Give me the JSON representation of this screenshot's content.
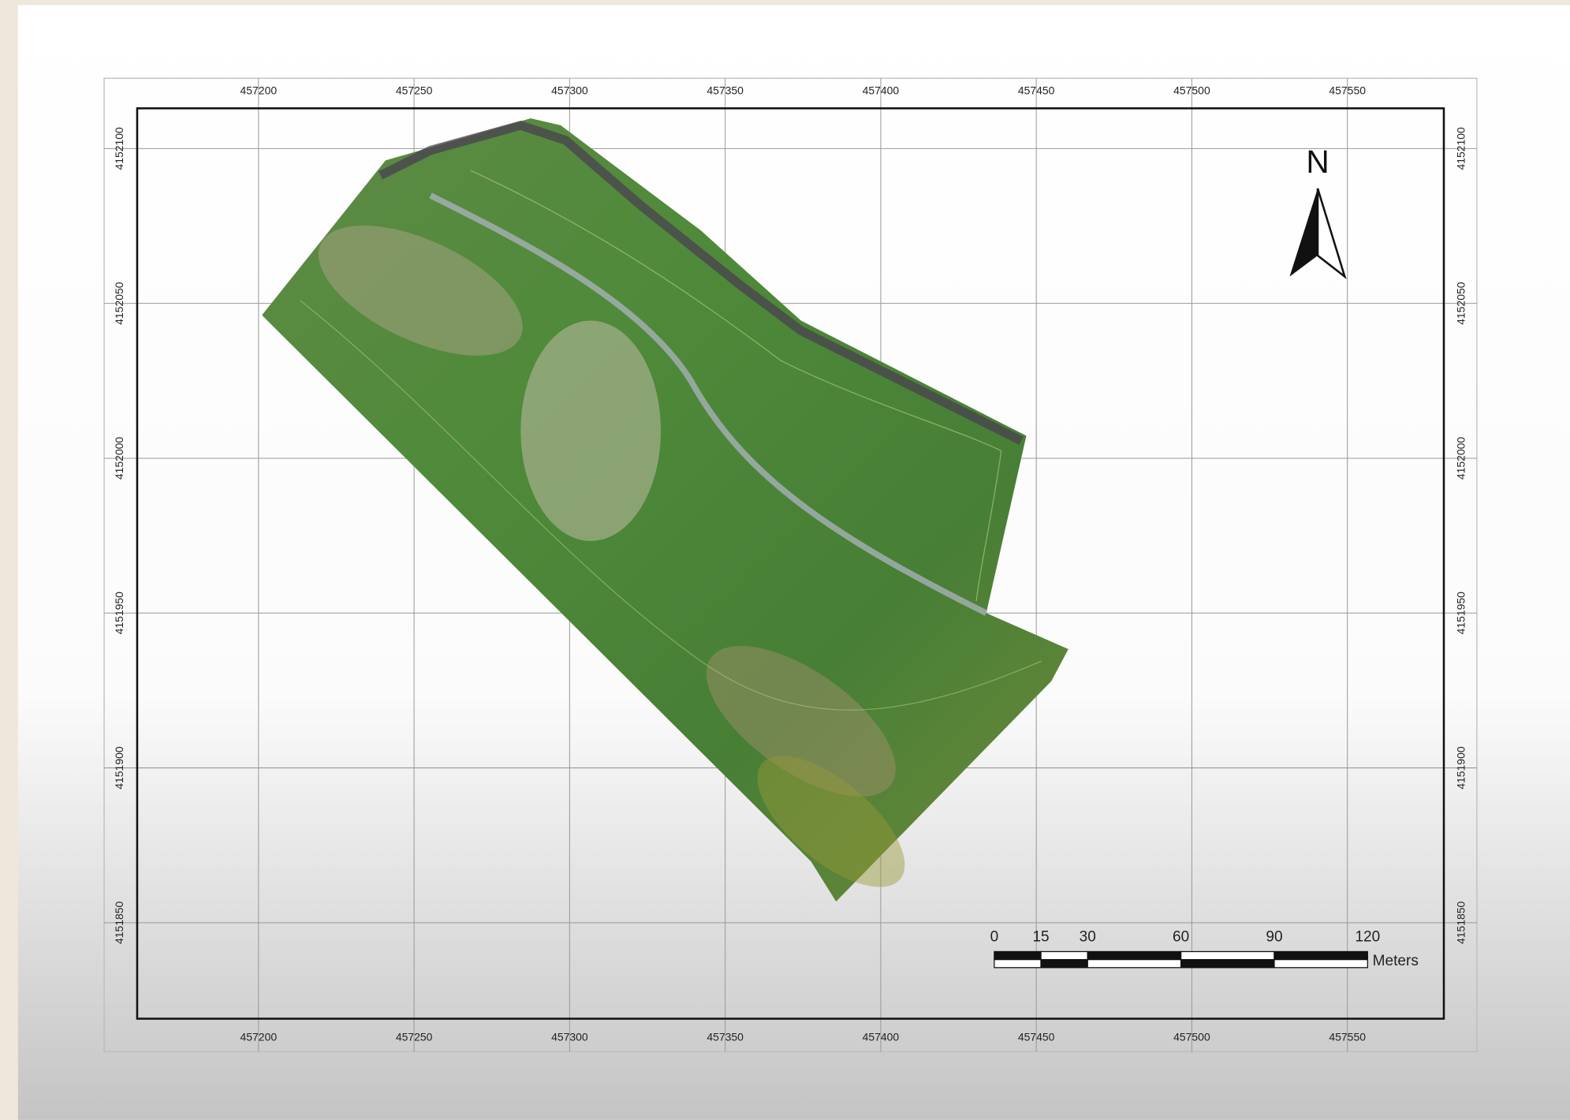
{
  "map": {
    "xticks": [
      457200,
      457250,
      457300,
      457350,
      457400,
      457450,
      457500,
      457550
    ],
    "yticks": [
      4152100,
      4152050,
      4152000,
      4151950,
      4151900,
      4151850
    ],
    "xlim": [
      457161,
      457581
    ],
    "ylim": [
      4151819,
      4152113
    ],
    "north": "N",
    "scale_bar": {
      "ticks": [
        0,
        15,
        30,
        60,
        90,
        120
      ],
      "unit": "Meters"
    }
  }
}
